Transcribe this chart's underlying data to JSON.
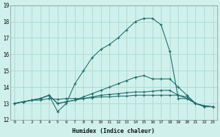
{
  "xlabel": "Humidex (Indice chaleur)",
  "bg_color": "#cff0eb",
  "grid_color": "#a8d8d0",
  "line_color": "#1a6b6b",
  "xlim": [
    -0.5,
    23.5
  ],
  "ylim": [
    12,
    19
  ],
  "yticks": [
    12,
    13,
    14,
    15,
    16,
    17,
    18,
    19
  ],
  "xticks": [
    0,
    1,
    2,
    3,
    4,
    5,
    6,
    7,
    8,
    9,
    10,
    11,
    12,
    13,
    14,
    15,
    16,
    17,
    18,
    19,
    20,
    21,
    22,
    23
  ],
  "series": [
    {
      "x": [
        0,
        1,
        2,
        3,
        4,
        5,
        6,
        7,
        8,
        9,
        10,
        11,
        12,
        13,
        14,
        15,
        16,
        17,
        18,
        19,
        20,
        21,
        22,
        23
      ],
      "y": [
        13.0,
        13.1,
        13.2,
        13.2,
        13.3,
        13.25,
        13.3,
        13.3,
        13.3,
        13.35,
        13.4,
        13.4,
        13.45,
        13.45,
        13.5,
        13.5,
        13.5,
        13.5,
        13.5,
        13.5,
        13.3,
        13.0,
        12.8,
        12.8
      ]
    },
    {
      "x": [
        0,
        1,
        2,
        3,
        4,
        5,
        6,
        7,
        8,
        9,
        10,
        11,
        12,
        13,
        14,
        15,
        16,
        17,
        18,
        19,
        20,
        21,
        22,
        23
      ],
      "y": [
        13.0,
        13.1,
        13.2,
        13.3,
        13.5,
        13.0,
        13.1,
        13.2,
        13.3,
        13.4,
        13.5,
        13.55,
        13.6,
        13.65,
        13.7,
        13.7,
        13.75,
        13.8,
        13.8,
        13.5,
        13.4,
        13.0,
        12.85,
        12.8
      ]
    },
    {
      "x": [
        0,
        1,
        2,
        3,
        4,
        5,
        6,
        7,
        8,
        9,
        10,
        11,
        12,
        13,
        14,
        15,
        16,
        17,
        18,
        19,
        20,
        21,
        22,
        23
      ],
      "y": [
        13.0,
        13.1,
        13.2,
        13.3,
        13.5,
        13.0,
        13.1,
        13.2,
        13.4,
        13.6,
        13.8,
        14.0,
        14.2,
        14.4,
        14.6,
        14.7,
        14.5,
        14.5,
        14.5,
        14.0,
        13.5,
        13.0,
        12.85,
        12.8
      ]
    },
    {
      "x": [
        0,
        1,
        2,
        3,
        4,
        5,
        6,
        7,
        8,
        9,
        10,
        11,
        12,
        13,
        14,
        15,
        16,
        17,
        18,
        19,
        20,
        21,
        22,
        23
      ],
      "y": [
        13.0,
        13.1,
        13.2,
        13.3,
        13.5,
        12.5,
        13.0,
        14.2,
        15.0,
        15.8,
        16.3,
        16.6,
        17.0,
        17.5,
        18.0,
        18.2,
        18.2,
        17.8,
        16.2,
        13.3,
        13.3,
        13.0,
        12.85,
        12.8
      ]
    }
  ]
}
